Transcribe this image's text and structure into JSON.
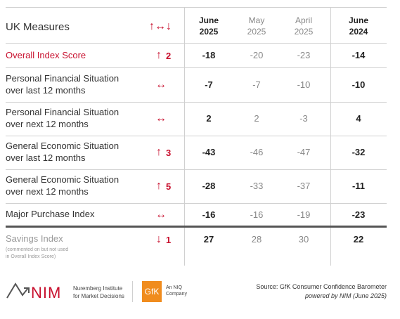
{
  "header": {
    "title": "UK Measures",
    "change_icon": "↑↔↓",
    "columns": [
      {
        "month": "June",
        "year": "2025"
      },
      {
        "month": "May",
        "year": "2025"
      },
      {
        "month": "April",
        "year": "2025"
      },
      {
        "month": "June",
        "year": "2024"
      }
    ]
  },
  "table": {
    "rows": [
      {
        "label": [
          "Overall Index Score"
        ],
        "arrow": "↑",
        "amount": "2",
        "values": [
          "-18",
          "-20",
          "-23",
          "-14"
        ]
      },
      {
        "label": [
          "Personal Financial Situation",
          "over last 12 months"
        ],
        "arrow": "↔",
        "amount": null,
        "values": [
          "-7",
          "-7",
          "-10",
          "-10"
        ]
      },
      {
        "label": [
          "Personal Financial Situation",
          "over next 12 months"
        ],
        "arrow": "↔",
        "amount": null,
        "values": [
          "2",
          "2",
          "-3",
          "4"
        ]
      },
      {
        "label": [
          "General Economic Situation",
          "over last 12 months"
        ],
        "arrow": "↑",
        "amount": "3",
        "values": [
          "-43",
          "-46",
          "-47",
          "-32"
        ]
      },
      {
        "label": [
          "General Economic Situation",
          "over next 12 months"
        ],
        "arrow": "↑",
        "amount": "5",
        "values": [
          "-28",
          "-33",
          "-37",
          "-11"
        ]
      },
      {
        "label": [
          "Major Purchase Index"
        ],
        "arrow": "↔",
        "amount": null,
        "values": [
          "-16",
          "-16",
          "-19",
          "-23"
        ]
      },
      {
        "label": [
          "Savings Index"
        ],
        "note": [
          "(commented on but not used",
          "in Overall Index Score)"
        ],
        "arrow": "↓",
        "amount": "1",
        "values": [
          "27",
          "28",
          "30",
          "22"
        ]
      }
    ]
  },
  "footer": {
    "nim": "NIM",
    "nim_name": [
      "Nuremberg Institute",
      "for Market Decisions"
    ],
    "gfk": "GfK",
    "gfk_tag": [
      "An NIQ",
      "Company"
    ],
    "source": "Source: GfK Consumer Confidence Barometer",
    "powered": "powered by NIM (June 2025)"
  }
}
